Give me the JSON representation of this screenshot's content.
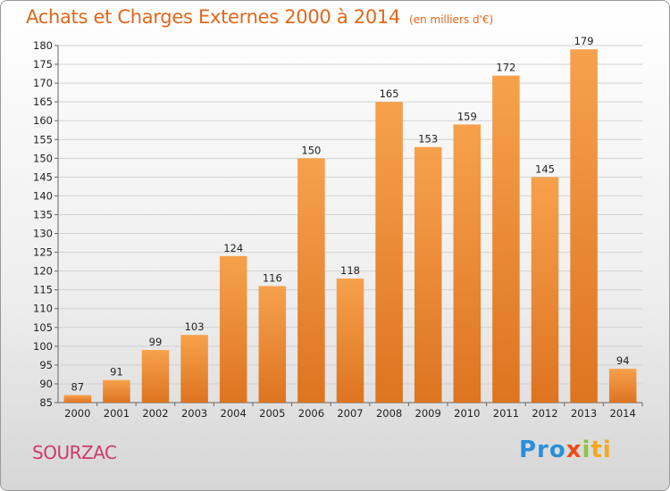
{
  "header": {
    "title": "Achats et Charges Externes 2000 à 2014",
    "subtitle": "(en milliers d'€)"
  },
  "footer": {
    "commune": "SOURZAC",
    "logo": [
      "Pro",
      "x",
      "i",
      "ti"
    ]
  },
  "colors": {
    "bar_light": "#f7a14c",
    "bar_dark": "#dd7420",
    "title": "#e2671a",
    "commune": "#d03a6b"
  },
  "chart_data": {
    "type": "bar",
    "title": "Achats et Charges Externes 2000 à 2014",
    "subtitle": "(en milliers d'€)",
    "categories": [
      "2000",
      "2001",
      "2002",
      "2003",
      "2004",
      "2005",
      "2006",
      "2007",
      "2008",
      "2009",
      "2010",
      "2011",
      "2012",
      "2013",
      "2014"
    ],
    "values": [
      87,
      91,
      99,
      103,
      124,
      116,
      150,
      118,
      165,
      153,
      159,
      172,
      145,
      179,
      94
    ],
    "ylim": [
      85,
      180
    ],
    "yticks": [
      85,
      90,
      95,
      100,
      105,
      110,
      115,
      120,
      125,
      130,
      135,
      140,
      145,
      150,
      155,
      160,
      165,
      170,
      175,
      180
    ],
    "grid": true,
    "xlabel": "",
    "ylabel": ""
  }
}
